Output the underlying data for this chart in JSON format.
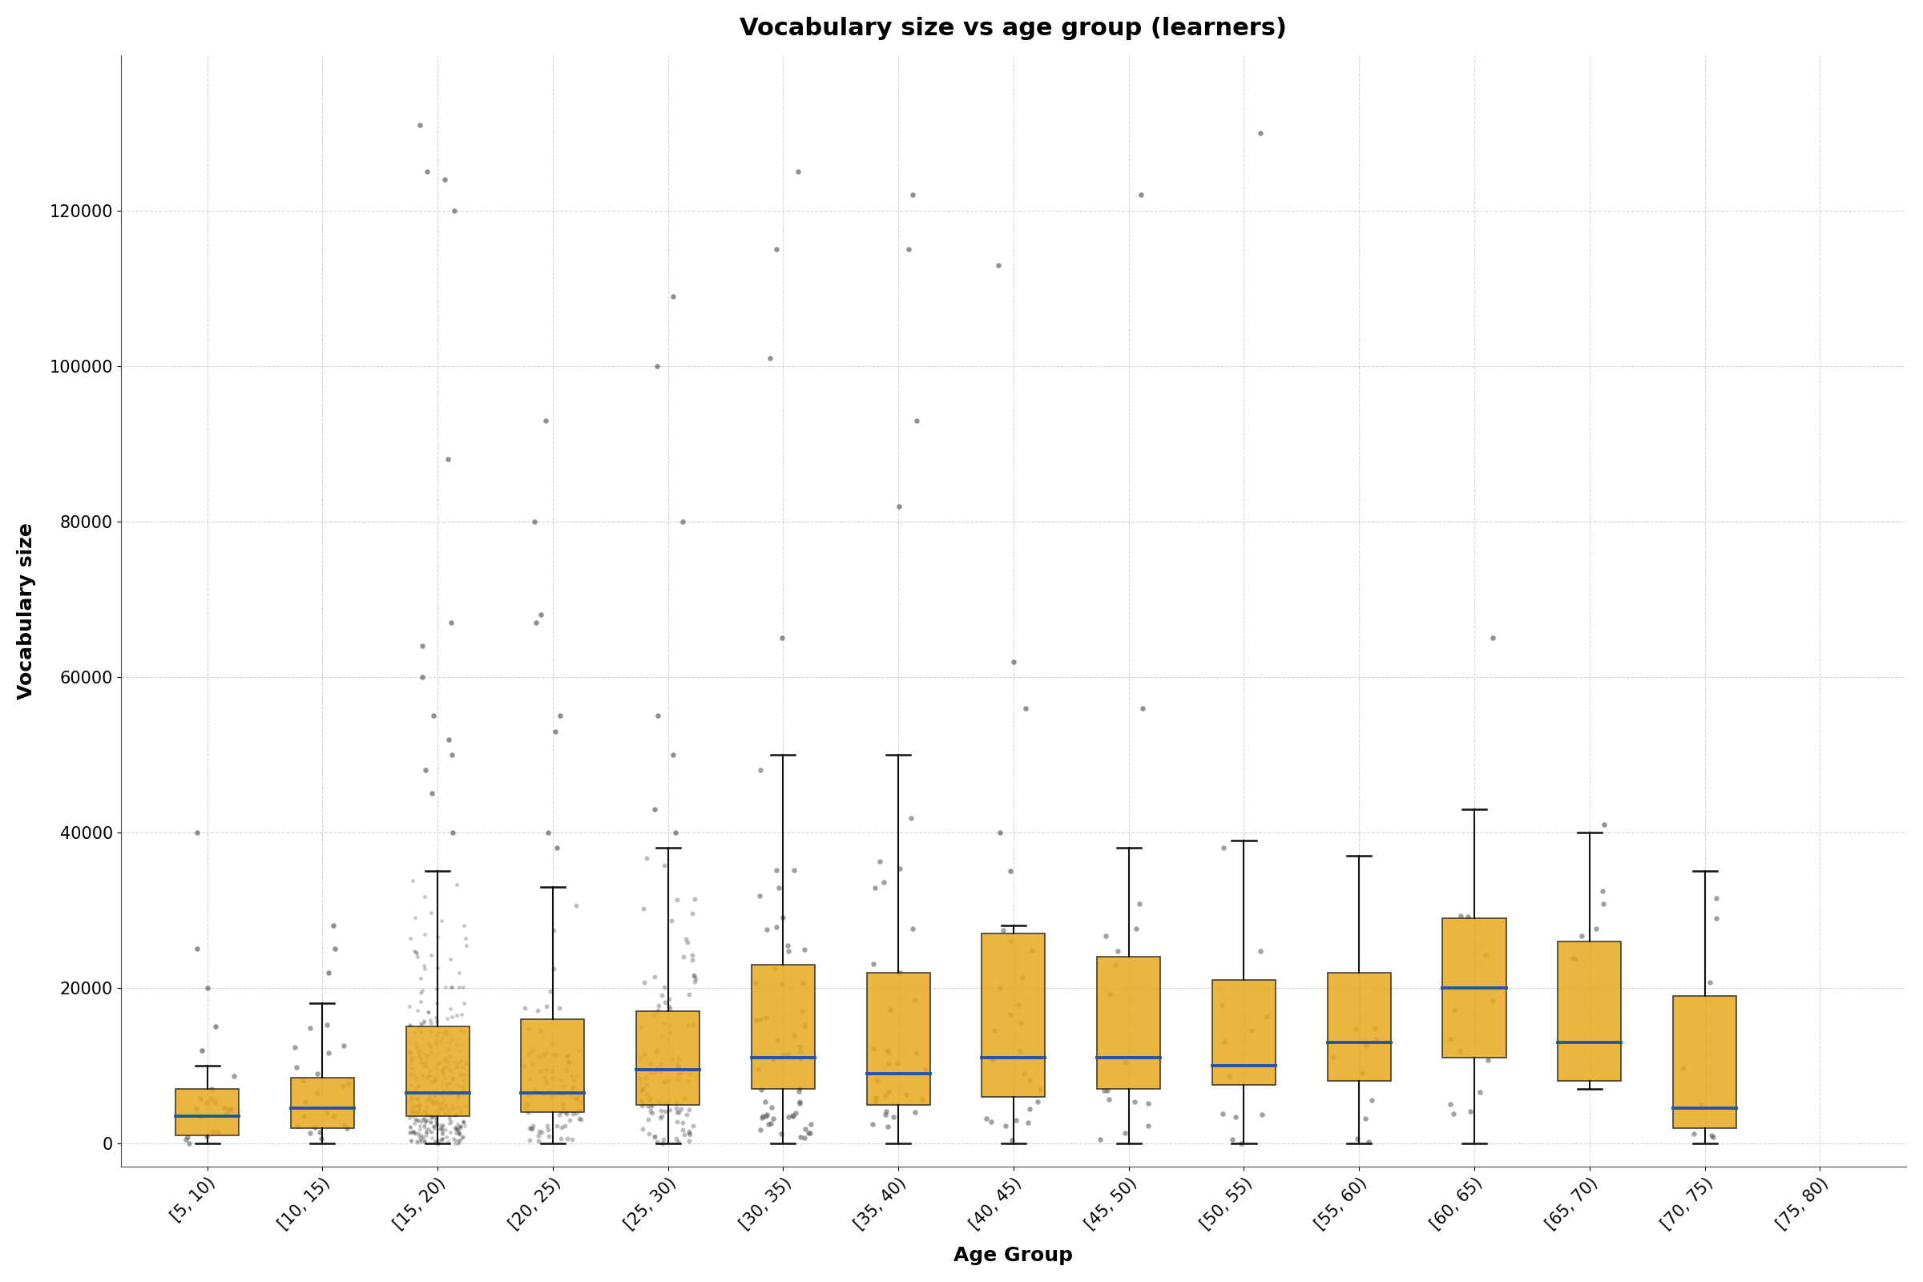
{
  "title": "Vocabulary size vs age group (learners)",
  "xlabel": "Age Group",
  "ylabel": "Vocabulary size",
  "categories": [
    "[5, 10)",
    "[10, 15)",
    "[15, 20)",
    "[20, 25)",
    "[25, 30)",
    "[30, 35)",
    "[35, 40)",
    "[40, 45)",
    "[45, 50)",
    "[50, 55)",
    "[55, 60)",
    "[60, 65)",
    "[65, 70)",
    "[70, 75)",
    "[75, 80)"
  ],
  "box_color": "#E8A820",
  "median_color": "#2255aa",
  "whisker_color": "#111111",
  "point_color": "#555555",
  "background_color": "#ffffff",
  "grid_color": "#bbbbbb",
  "ylim": [
    -3000,
    140000
  ],
  "yticks": [
    0,
    20000,
    40000,
    60000,
    80000,
    100000,
    120000
  ],
  "box_stats": [
    {
      "q1": 1000,
      "median": 3500,
      "q3": 7000,
      "whisker_low": 0,
      "whisker_high": 10000,
      "n_jitter": 18,
      "outliers": [
        12000,
        15000,
        20000,
        25000,
        40000
      ]
    },
    {
      "q1": 2000,
      "median": 4500,
      "q3": 8500,
      "whisker_low": 0,
      "whisker_high": 18000,
      "n_jitter": 22,
      "outliers": [
        22000,
        25000,
        28000
      ]
    },
    {
      "q1": 3500,
      "median": 6500,
      "q3": 15000,
      "whisker_low": 0,
      "whisker_high": 35000,
      "n_jitter": 350,
      "outliers": [
        40000,
        45000,
        48000,
        50000,
        52000,
        55000,
        60000,
        64000,
        67000,
        88000,
        120000,
        124000,
        125000,
        131000
      ]
    },
    {
      "q1": 4000,
      "median": 6500,
      "q3": 16000,
      "whisker_low": 0,
      "whisker_high": 33000,
      "n_jitter": 90,
      "outliers": [
        38000,
        40000,
        53000,
        55000,
        67000,
        68000,
        80000,
        93000
      ]
    },
    {
      "q1": 5000,
      "median": 9500,
      "q3": 17000,
      "whisker_low": 0,
      "whisker_high": 38000,
      "n_jitter": 110,
      "outliers": [
        40000,
        43000,
        50000,
        55000,
        80000,
        100000,
        109000
      ]
    },
    {
      "q1": 7000,
      "median": 11000,
      "q3": 23000,
      "whisker_low": 0,
      "whisker_high": 50000,
      "n_jitter": 55,
      "outliers": [
        65000,
        101000,
        115000,
        125000
      ]
    },
    {
      "q1": 5000,
      "median": 9000,
      "q3": 22000,
      "whisker_low": 0,
      "whisker_high": 50000,
      "n_jitter": 30,
      "outliers": [
        82000,
        93000,
        115000,
        122000
      ]
    },
    {
      "q1": 6000,
      "median": 11000,
      "q3": 27000,
      "whisker_low": 0,
      "whisker_high": 28000,
      "n_jitter": 22,
      "outliers": [
        35000,
        40000,
        56000,
        62000,
        113000
      ]
    },
    {
      "q1": 7000,
      "median": 11000,
      "q3": 24000,
      "whisker_low": 0,
      "whisker_high": 38000,
      "n_jitter": 15,
      "outliers": [
        56000,
        122000
      ]
    },
    {
      "q1": 7500,
      "median": 10000,
      "q3": 21000,
      "whisker_low": 0,
      "whisker_high": 39000,
      "n_jitter": 12,
      "outliers": [
        130000
      ]
    },
    {
      "q1": 8000,
      "median": 13000,
      "q3": 22000,
      "whisker_low": 0,
      "whisker_high": 37000,
      "n_jitter": 10,
      "outliers": []
    },
    {
      "q1": 11000,
      "median": 20000,
      "q3": 29000,
      "whisker_low": 0,
      "whisker_high": 43000,
      "n_jitter": 12,
      "outliers": [
        65000
      ]
    },
    {
      "q1": 8000,
      "median": 13000,
      "q3": 26000,
      "whisker_low": 7000,
      "whisker_high": 40000,
      "n_jitter": 6,
      "outliers": [
        41000
      ]
    },
    {
      "q1": 2000,
      "median": 4500,
      "q3": 19000,
      "whisker_low": 0,
      "whisker_high": 35000,
      "n_jitter": 8,
      "outliers": []
    },
    {
      "q1": 0,
      "median": 0,
      "q3": 0,
      "whisker_low": 0,
      "whisker_high": 0,
      "n_jitter": 0,
      "outliers": []
    }
  ],
  "title_fontsize": 22,
  "label_fontsize": 18,
  "tick_fontsize": 15,
  "box_width": 0.55
}
